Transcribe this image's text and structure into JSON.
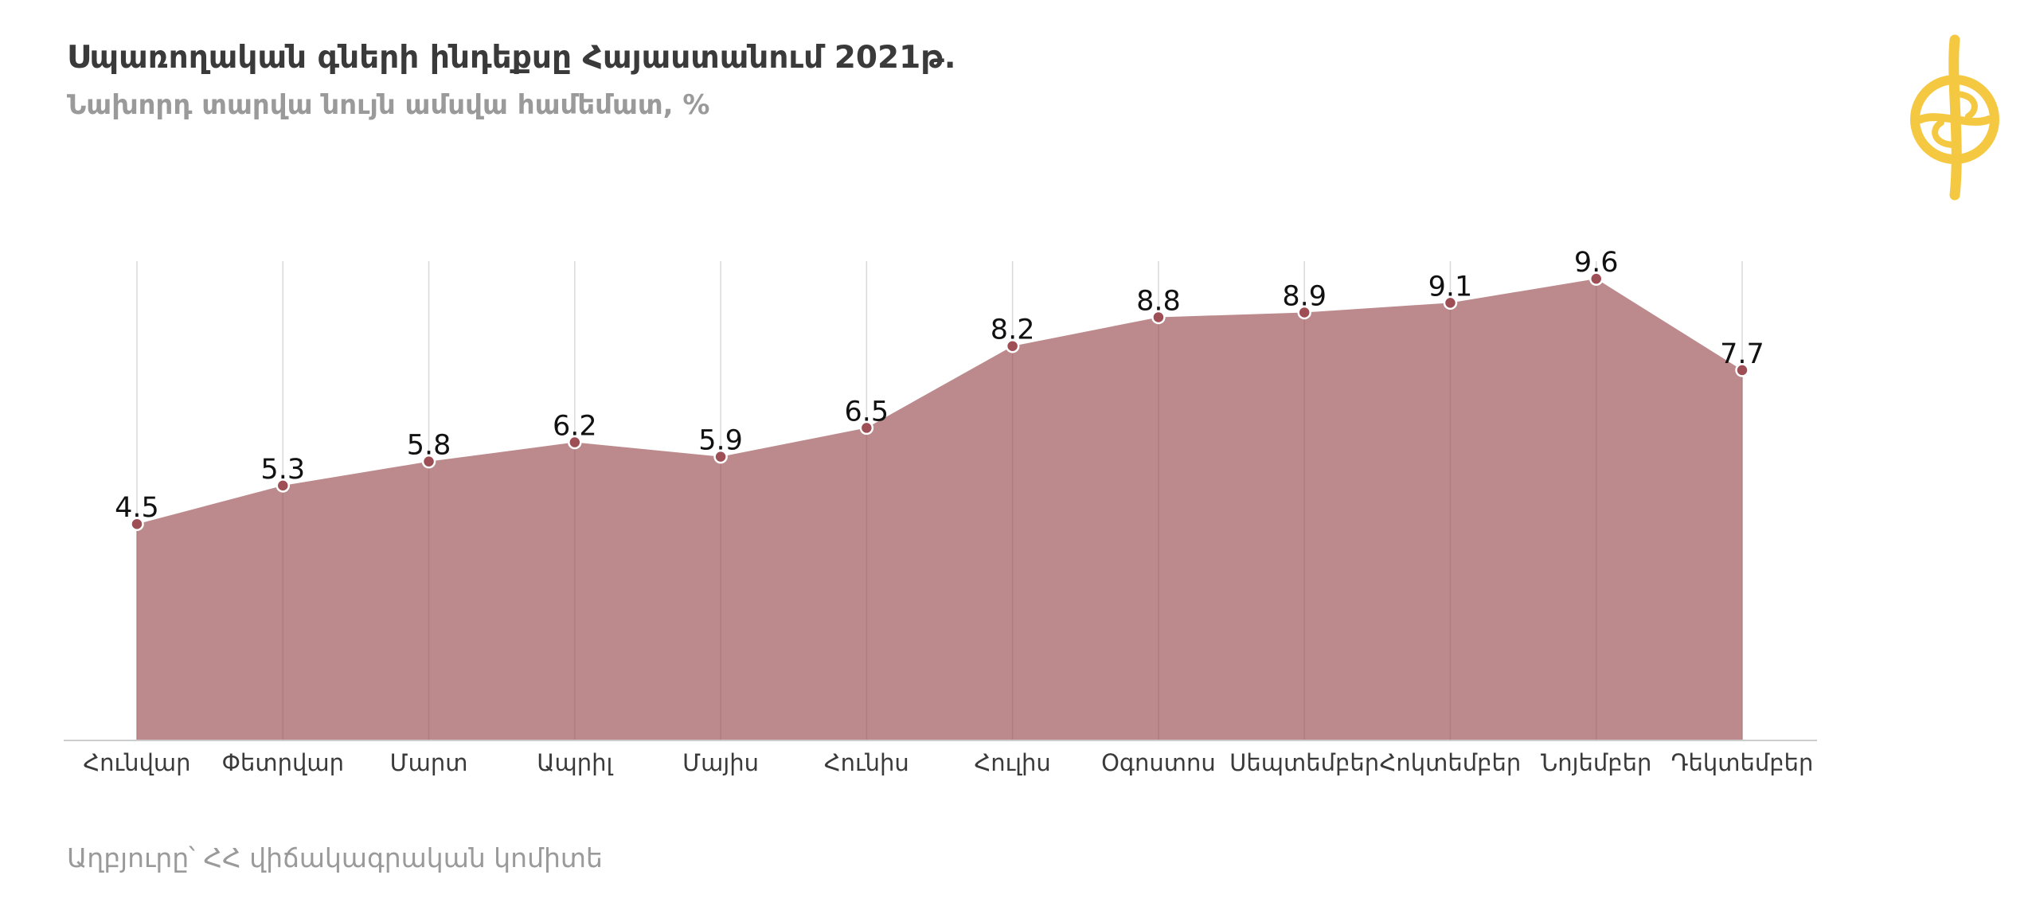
{
  "title": "Սպառողական գների ինդեքսը Հայաստանում  2021թ.",
  "subtitle": "Նախորդ տարվա նույն ամսվա համեմատ, %",
  "source": "Աղբյուրը՝ ՀՀ վիճակագրական կոմիտե",
  "logo_icon": "emblem-icon",
  "colors": {
    "area": "#bc8a8c",
    "point": "#9e4f55",
    "logo": "#f5c842",
    "grid": "#d9d9d9"
  },
  "chart_data": {
    "type": "area",
    "title": "Սպառողական գների ինդեքսը Հայաստանում  2021թ.",
    "subtitle": "Նախորդ տարվա նույն ամսվա համեմատ, %",
    "categories": [
      "Հունվար",
      "Փետրվար",
      "Մարտ",
      "Ապրիլ",
      "Մայիս",
      "Հունիս",
      "Հուլիս",
      "Օգոստոս",
      "Սեպտեմբեր",
      "Հոկտեմբեր",
      "Նոյեմբեր",
      "Դեկտեմբեր"
    ],
    "values": [
      4.5,
      5.3,
      5.8,
      6.2,
      5.9,
      6.5,
      8.2,
      8.8,
      8.9,
      9.1,
      9.6,
      7.7
    ],
    "value_labels": [
      "4.5",
      "5.3",
      "5.8",
      "6.2",
      "5.9",
      "6.5",
      "8.2",
      "8.8",
      "8.9",
      "9.1",
      "9.6",
      "7.7"
    ],
    "ylim": [
      0,
      10
    ],
    "xlabel": "",
    "ylabel": "",
    "grid": "vertical",
    "legend": "none",
    "data_labels": true
  }
}
